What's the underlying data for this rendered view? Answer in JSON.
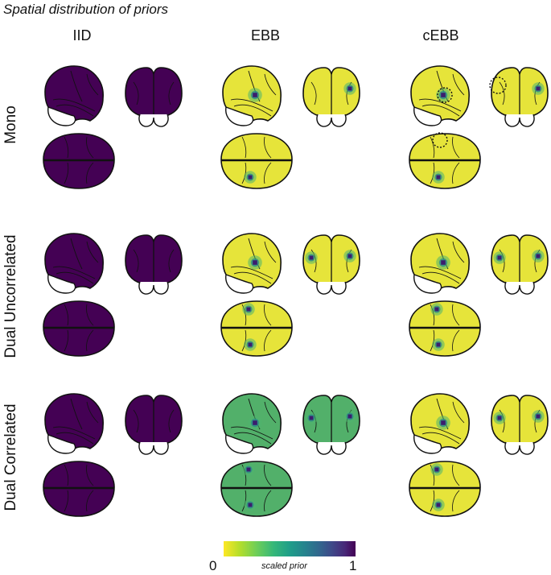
{
  "figure": {
    "title": "Spatial distribution of priors",
    "columns": [
      "IID",
      "EBB",
      "cEBB"
    ],
    "rows": [
      "Mono",
      "Dual Uncorrelated",
      "Dual Correlated"
    ]
  },
  "colorbar": {
    "min_label": "0",
    "label": "scaled prior",
    "max_label": "1",
    "colors": [
      "#fde725",
      "#b5de2b",
      "#6ece58",
      "#35b779",
      "#1f9e89",
      "#26828e",
      "#31688e",
      "#3e4989",
      "#482878",
      "#440154"
    ]
  },
  "palette": {
    "iid_fill": "#440154",
    "low_fill": "#e6e43a",
    "high_spot": "#3b1d6e",
    "ebb_correlated_fill": "#52b06a",
    "outline": "#111111"
  },
  "panels": [
    {
      "row": "Mono",
      "column": "IID",
      "background_level": 1.0,
      "hotspots": false
    },
    {
      "row": "Mono",
      "column": "EBB",
      "background_level": 0.0,
      "hotspots": true
    },
    {
      "row": "Mono",
      "column": "cEBB",
      "background_level": 0.0,
      "hotspots": true,
      "dotted_region": true
    },
    {
      "row": "Dual Uncorrelated",
      "column": "IID",
      "background_level": 1.0,
      "hotspots": false
    },
    {
      "row": "Dual Uncorrelated",
      "column": "EBB",
      "background_level": 0.0,
      "hotspots": true
    },
    {
      "row": "Dual Uncorrelated",
      "column": "cEBB",
      "background_level": 0.0,
      "hotspots": true
    },
    {
      "row": "Dual Correlated",
      "column": "IID",
      "background_level": 1.0,
      "hotspots": false
    },
    {
      "row": "Dual Correlated",
      "column": "EBB",
      "background_level": 0.45,
      "hotspots": true
    },
    {
      "row": "Dual Correlated",
      "column": "cEBB",
      "background_level": 0.0,
      "hotspots": true
    }
  ]
}
